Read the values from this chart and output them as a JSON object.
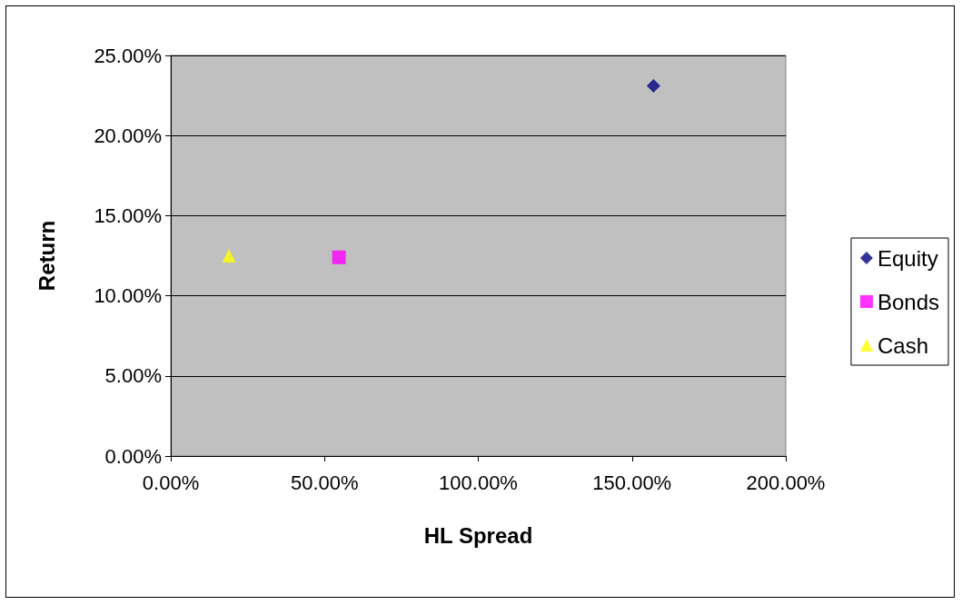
{
  "chart_data": {
    "type": "scatter",
    "xlabel": "HL Spread",
    "ylabel": "Return",
    "series": [
      {
        "name": "Equity",
        "color": "#000080",
        "marker": "diamond",
        "x": [
          157
        ],
        "values": [
          23.1
        ]
      },
      {
        "name": "Bonds",
        "color": "#ff00ff",
        "marker": "square",
        "x": [
          54.7
        ],
        "values": [
          12.4
        ]
      },
      {
        "name": "Cash",
        "color": "#ffff00",
        "marker": "triangle",
        "x": [
          18.9
        ],
        "values": [
          12.5
        ]
      }
    ],
    "xlim": [
      0,
      200
    ],
    "ylim": [
      0,
      25
    ],
    "xticks": [
      {
        "value": 0,
        "label": "0.00%"
      },
      {
        "value": 50,
        "label": "50.00%"
      },
      {
        "value": 100,
        "label": "100.00%"
      },
      {
        "value": 150,
        "label": "150.00%"
      },
      {
        "value": 200,
        "label": "200.00%"
      }
    ],
    "yticks": [
      {
        "value": 0,
        "label": "0.00%"
      },
      {
        "value": 5,
        "label": "5.00%"
      },
      {
        "value": 10,
        "label": "10.00%"
      },
      {
        "value": 15,
        "label": "15.00%"
      },
      {
        "value": 20,
        "label": "20.00%"
      },
      {
        "value": 25,
        "label": "25.00%"
      }
    ],
    "grid": "y",
    "legend": "right"
  }
}
